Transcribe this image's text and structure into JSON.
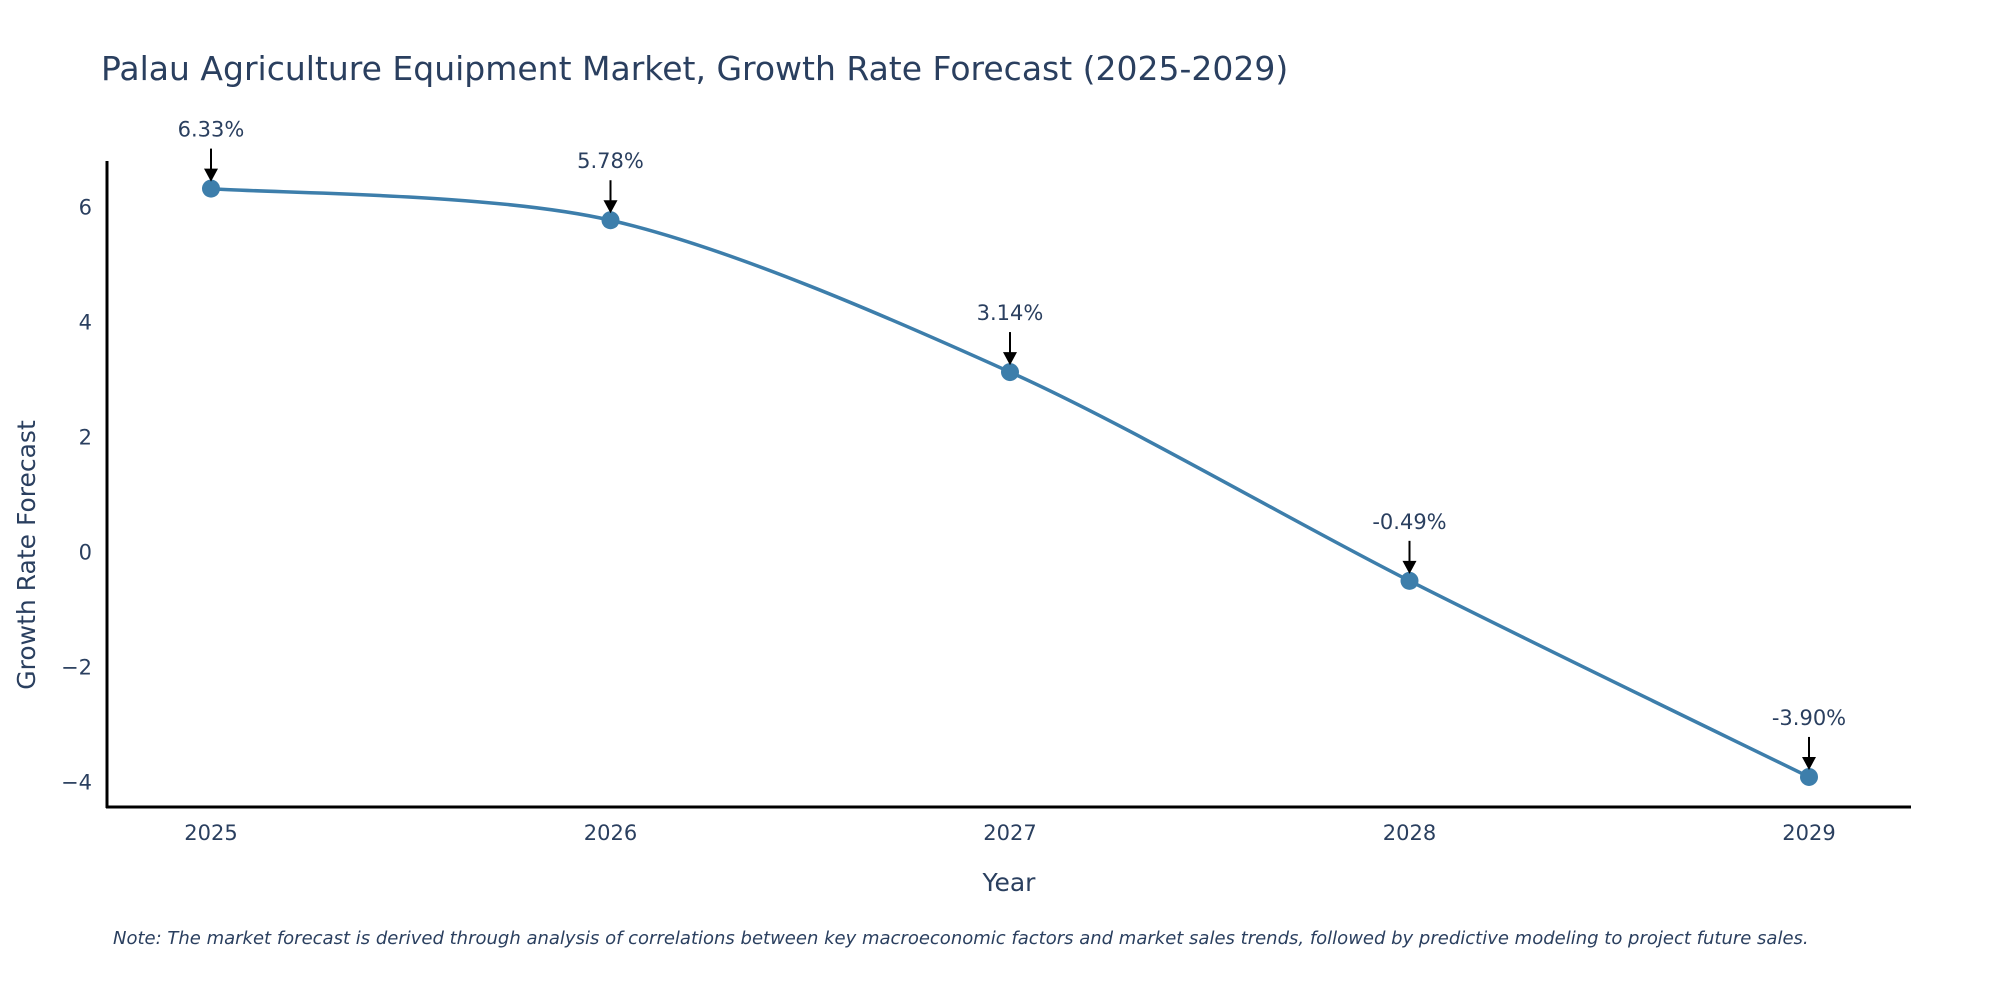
{
  "chart_data": {
    "type": "line",
    "title": "Palau Agriculture Equipment Market, Growth Rate Forecast (2025-2029)",
    "xlabel": "Year",
    "ylabel": "Growth Rate Forecast",
    "categories": [
      "2025",
      "2026",
      "2027",
      "2028",
      "2029"
    ],
    "series": [
      {
        "name": "Growth Rate Forecast",
        "values": [
          6.33,
          5.78,
          3.14,
          -0.49,
          -3.9
        ],
        "labels": [
          "6.33%",
          "5.78%",
          "3.14%",
          "-0.49%",
          "-3.90%"
        ]
      }
    ],
    "y_ticks": [
      {
        "value": 6,
        "label": "6"
      },
      {
        "value": 4,
        "label": "4"
      },
      {
        "value": 2,
        "label": "2"
      },
      {
        "value": 0,
        "label": "0"
      },
      {
        "value": -2,
        "label": "−2"
      },
      {
        "value": -4,
        "label": "−4"
      }
    ],
    "ylim": [
      -4.44,
      6.81
    ],
    "grid": false,
    "line_color": "#3d7eab",
    "marker_color": "#3d7eab",
    "note": "Note: The market forecast is derived through analysis of correlations between key macroeconomic factors and market sales trends, followed by predictive modeling to project future sales."
  }
}
